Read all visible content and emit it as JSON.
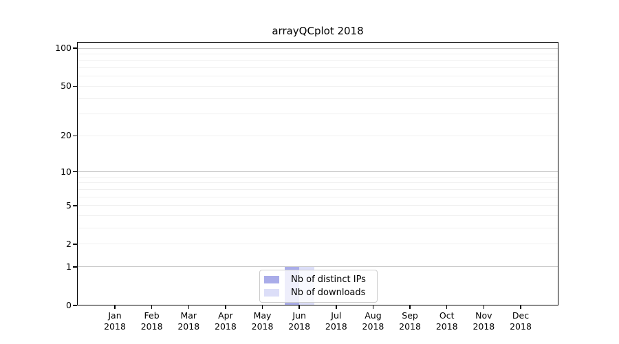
{
  "chart_data": {
    "type": "bar",
    "title": "arrayQCplot 2018",
    "categories": [
      "Jan",
      "Feb",
      "Mar",
      "Apr",
      "May",
      "Jun",
      "Jul",
      "Aug",
      "Sep",
      "Oct",
      "Nov",
      "Dec"
    ],
    "category_year": "2018",
    "series": [
      {
        "key": "distinct-ips",
        "name": "Nb of distinct IPs",
        "color": "#a9ace9",
        "values": [
          0,
          0,
          0,
          0,
          0,
          1,
          0,
          0,
          0,
          0,
          0,
          0
        ]
      },
      {
        "key": "downloads",
        "name": "Nb of downloads",
        "color": "#dcdef8",
        "values": [
          0,
          0,
          0,
          0,
          0,
          1,
          0,
          0,
          0,
          0,
          0,
          0
        ]
      }
    ],
    "xlabel": "",
    "ylabel": "",
    "y_scale": "log1p",
    "ylim": [
      0,
      100
    ],
    "y_ticks": [
      0,
      1,
      2,
      5,
      10,
      20,
      50,
      100
    ],
    "y_gridlines_major": [
      1,
      10,
      100
    ],
    "y_gridlines_minor": [
      2,
      3,
      4,
      5,
      6,
      7,
      8,
      9,
      20,
      30,
      40,
      50,
      60,
      70,
      80,
      90
    ],
    "grid": "horizontal",
    "legend_position": "bottom-center"
  },
  "colors": {
    "grid_major": "#c9c9c9",
    "grid_minor": "#f0f0f0",
    "axis": "#000000",
    "text": "#000000",
    "legend_border": "#cccccc"
  }
}
